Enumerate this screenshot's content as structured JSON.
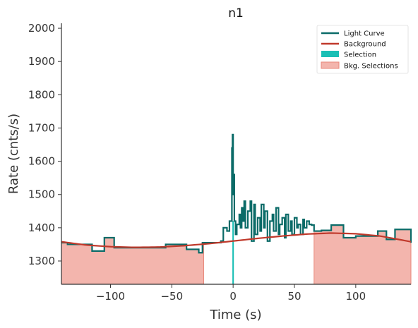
{
  "chart_data": {
    "type": "line",
    "title": "n1",
    "xlabel": "Time (s)",
    "ylabel": "Rate (cnts/s)",
    "xlim": [
      -140,
      145
    ],
    "ylim": [
      1230,
      2015
    ],
    "xticks": [
      -100,
      -50,
      0,
      50,
      100
    ],
    "xtick_labels": [
      "−100",
      "−50",
      "0",
      "50",
      "100"
    ],
    "yticks": [
      1300,
      1400,
      1500,
      1600,
      1700,
      1800,
      1900,
      2000
    ],
    "ytick_labels": [
      "1300",
      "1400",
      "1500",
      "1600",
      "1700",
      "1800",
      "1900",
      "2000"
    ],
    "legend_position": "top-right",
    "colors": {
      "light_curve": "#0b6b68",
      "background": "#c0392b",
      "selection": "#1abfb5",
      "bkg_selection_fill": "#f3b5ad",
      "bkg_selection_edge": "#e8877a"
    },
    "series": [
      {
        "name": "Light Curve",
        "kind": "step",
        "x": [
          -140,
          -135,
          -130,
          -115,
          -105,
          -97,
          -90,
          -75,
          -60,
          -55,
          -45,
          -38,
          -28,
          -25,
          -10,
          -8,
          -5,
          -3,
          -1,
          -0.5,
          0,
          0.5,
          1,
          2,
          3,
          5,
          6,
          7,
          8,
          9,
          10,
          12,
          14,
          15,
          17,
          18,
          20,
          22,
          23,
          25,
          26,
          28,
          30,
          32,
          33,
          35,
          37,
          38,
          40,
          42,
          43,
          45,
          47,
          48,
          50,
          52,
          53,
          55,
          57,
          58,
          60,
          62,
          64,
          66,
          72,
          80,
          90,
          100,
          108,
          118,
          125,
          132,
          145
        ],
        "y": [
          1355,
          1350,
          1350,
          1330,
          1370,
          1340,
          1340,
          1340,
          1340,
          1350,
          1350,
          1335,
          1325,
          1355,
          1360,
          1400,
          1390,
          1420,
          1640,
          1680,
          1500,
          1560,
          1420,
          1380,
          1410,
          1440,
          1400,
          1460,
          1420,
          1480,
          1400,
          1450,
          1480,
          1360,
          1470,
          1380,
          1430,
          1390,
          1470,
          1400,
          1450,
          1360,
          1420,
          1440,
          1390,
          1460,
          1380,
          1410,
          1430,
          1370,
          1440,
          1390,
          1420,
          1380,
          1430,
          1400,
          1410,
          1380,
          1425,
          1400,
          1420,
          1410,
          1408,
          1390,
          1392,
          1408,
          1370,
          1375,
          1375,
          1390,
          1365,
          1395,
          1355
        ]
      },
      {
        "name": "Background",
        "kind": "line",
        "x": [
          -140,
          -120,
          -100,
          -80,
          -60,
          -40,
          -20,
          0,
          20,
          40,
          60,
          80,
          100,
          120,
          145
        ],
        "y": [
          1358,
          1348,
          1343,
          1341,
          1342,
          1346,
          1352,
          1360,
          1368,
          1375,
          1381,
          1384,
          1382,
          1375,
          1358
        ]
      },
      {
        "name": "Selection",
        "kind": "region",
        "x": [
          -0.6,
          0.6
        ]
      },
      {
        "name": "Bkg. Selections",
        "kind": "regions",
        "ranges": [
          [
            -140,
            -24
          ],
          [
            66,
            145
          ]
        ]
      }
    ]
  }
}
